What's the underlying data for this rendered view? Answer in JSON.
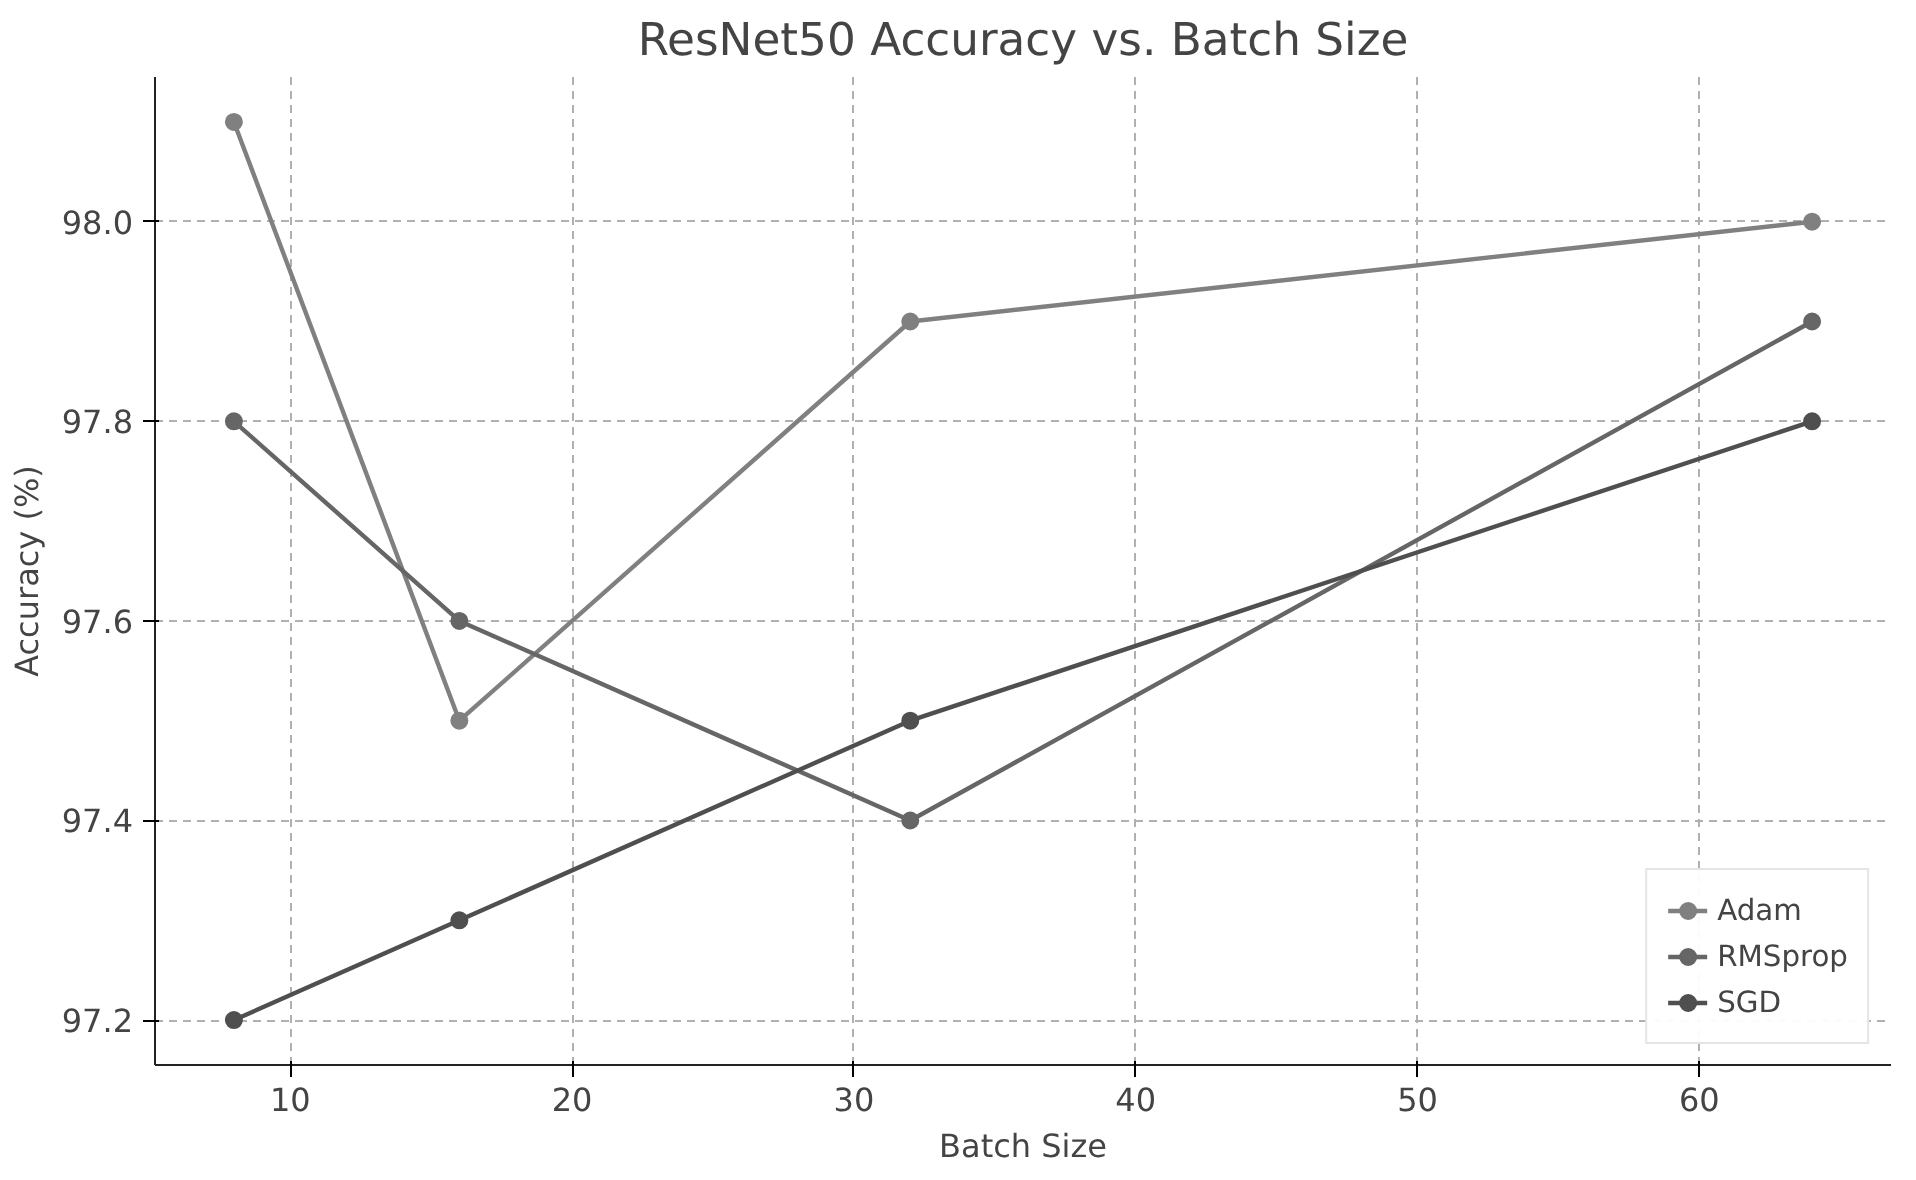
{
  "chart_data": {
    "type": "line",
    "title": "ResNet50 Accuracy vs. Batch Size",
    "xlabel": "Batch Size",
    "ylabel": "Accuracy (%)",
    "x": [
      8,
      16,
      32,
      64
    ],
    "series": [
      {
        "name": "Adam",
        "color": "#808080",
        "values": [
          98.1,
          97.5,
          97.9,
          98.0
        ]
      },
      {
        "name": "RMSprop",
        "color": "#666666",
        "values": [
          97.8,
          97.6,
          97.4,
          97.9
        ]
      },
      {
        "name": "SGD",
        "color": "#4f4f4f",
        "values": [
          97.2,
          97.3,
          97.5,
          97.8
        ]
      }
    ],
    "xlim": [
      5.2,
      66.8
    ],
    "ylim": [
      97.155,
      98.145
    ],
    "xticks": [
      10,
      20,
      30,
      40,
      50,
      60
    ],
    "yticks": [
      {
        "value": 97.2,
        "label": "97.2"
      },
      {
        "value": 97.4,
        "label": "97.4"
      },
      {
        "value": 97.6,
        "label": "97.6"
      },
      {
        "value": 97.8,
        "label": "97.8"
      },
      {
        "value": 98.0,
        "label": "98.0"
      }
    ],
    "grid": true,
    "legend": "bottom right",
    "marker": "circle",
    "line_style": "solid"
  }
}
